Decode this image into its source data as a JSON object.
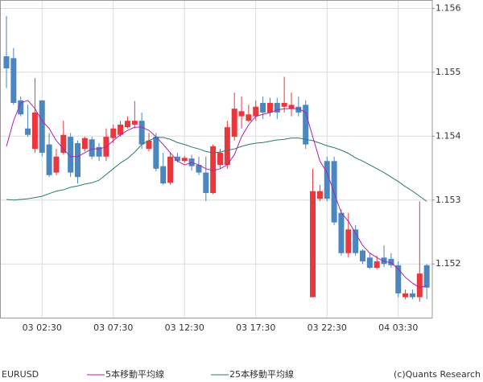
{
  "chart_data": {
    "type": "candlestick",
    "symbol": "EURUSD",
    "credit": "(c)Quants Research",
    "categories": [
      null,
      null,
      null,
      null,
      null,
      "03 02:30",
      null,
      null,
      null,
      null,
      null,
      null,
      null,
      null,
      null,
      "03 07:30",
      null,
      null,
      null,
      null,
      null,
      null,
      null,
      null,
      null,
      "03 12:30",
      null,
      null,
      null,
      null,
      null,
      null,
      null,
      null,
      null,
      "03 17:30",
      null,
      null,
      null,
      null,
      null,
      null,
      null,
      null,
      null,
      "03 22:30",
      null,
      null,
      null,
      null,
      null,
      null,
      null,
      null,
      null,
      "04 03:30",
      null,
      null,
      null,
      null
    ],
    "up_color": "#e8383d",
    "down_color": "#4a86c0",
    "ohlc": {
      "open": [
        1.15525,
        1.15522,
        1.15456,
        1.15412,
        1.1538,
        1.15456,
        1.15387,
        1.15343,
        1.15374,
        1.15399,
        1.15389,
        1.1538,
        1.15395,
        1.15383,
        1.15368,
        1.15397,
        1.15402,
        1.15414,
        1.15418,
        1.15424,
        1.1538,
        1.15399,
        1.15353,
        1.15327,
        1.15368,
        1.15361,
        1.15365,
        1.15355,
        1.15343,
        1.15311,
        1.15355,
        1.15355,
        1.15399,
        1.15431,
        1.15424,
        1.15431,
        1.15452,
        1.15437,
        1.15452,
        1.15446,
        1.15443,
        1.15446,
        1.15449,
        1.15148,
        1.15302,
        1.15361,
        1.15361,
        1.1528,
        1.15217,
        1.15254,
        1.15221,
        1.1521,
        1.15194,
        1.1521,
        1.15208,
        1.15198,
        1.15148,
        1.15154,
        1.15148,
        1.15198
      ],
      "high": [
        1.15588,
        1.15538,
        1.15462,
        1.15449,
        1.15491,
        1.15456,
        1.15405,
        1.1538,
        1.15424,
        1.15405,
        1.15393,
        1.15399,
        1.15399,
        1.15389,
        1.15412,
        1.15418,
        1.15424,
        1.15431,
        1.15455,
        1.15437,
        1.15405,
        1.15405,
        1.15374,
        1.15374,
        1.15374,
        1.15369,
        1.15371,
        1.15368,
        1.15368,
        1.15387,
        1.1538,
        1.15424,
        1.15468,
        1.15462,
        1.15449,
        1.15456,
        1.15462,
        1.1546,
        1.1546,
        1.15493,
        1.15468,
        1.15462,
        1.15456,
        1.15349,
        1.15324,
        1.15368,
        1.15368,
        1.15286,
        1.1528,
        1.15261,
        1.15223,
        1.15217,
        1.15213,
        1.15229,
        1.15217,
        1.15204,
        1.1516,
        1.1516,
        1.15298,
        1.152
      ],
      "low": [
        1.15475,
        1.15449,
        1.15431,
        1.15399,
        1.15374,
        1.15368,
        1.15336,
        1.15339,
        1.15371,
        1.15336,
        1.15326,
        1.15376,
        1.15364,
        1.15361,
        1.15361,
        1.15389,
        1.15399,
        1.15412,
        1.15412,
        1.1538,
        1.15376,
        1.15345,
        1.15324,
        1.15324,
        1.15359,
        1.15358,
        1.15346,
        1.15339,
        1.15298,
        1.15309,
        1.15349,
        1.15349,
        1.15393,
        1.15412,
        1.15422,
        1.15424,
        1.15427,
        1.15431,
        1.15427,
        1.15437,
        1.15431,
        1.15431,
        1.1538,
        1.15148,
        1.15298,
        1.15298,
        1.15261,
        1.15213,
        1.1521,
        1.15213,
        1.152,
        1.15192,
        1.15192,
        1.15195,
        1.15194,
        1.15148,
        1.15145,
        1.15145,
        1.15141,
        1.15145
      ],
      "close": [
        1.15506,
        1.15452,
        1.15434,
        1.15402,
        1.15437,
        1.15374,
        1.15339,
        1.15368,
        1.15402,
        1.15343,
        1.15336,
        1.15397,
        1.15368,
        1.15368,
        1.15399,
        1.15412,
        1.15418,
        1.15424,
        1.15424,
        1.15387,
        1.15393,
        1.15349,
        1.15326,
        1.15368,
        1.15361,
        1.15366,
        1.15353,
        1.15343,
        1.15311,
        1.15384,
        1.15374,
        1.15414,
        1.15443,
        1.15439,
        1.15434,
        1.15446,
        1.15437,
        1.15452,
        1.15437,
        1.15452,
        1.15449,
        1.15437,
        1.15387,
        1.15314,
        1.15314,
        1.15302,
        1.15265,
        1.15217,
        1.15254,
        1.15217,
        1.15204,
        1.15194,
        1.15204,
        1.152,
        1.15198,
        1.15154,
        1.15154,
        1.15148,
        1.15185,
        1.15163
      ]
    },
    "series": [
      {
        "name": "5本移動平均線",
        "color": "#b020b0",
        "values": [
          1.15384,
          1.15424,
          1.15452,
          1.15456,
          1.15443,
          1.15424,
          1.15412,
          1.15393,
          1.1538,
          1.15368,
          1.15368,
          1.15374,
          1.1538,
          1.1538,
          1.15383,
          1.15393,
          1.15402,
          1.15409,
          1.15414,
          1.15414,
          1.15409,
          1.15399,
          1.15387,
          1.15374,
          1.15361,
          1.15355,
          1.15359,
          1.15355,
          1.15349,
          1.15346,
          1.15349,
          1.15355,
          1.15371,
          1.15399,
          1.15418,
          1.15431,
          1.15434,
          1.15437,
          1.15441,
          1.15443,
          1.15443,
          1.15443,
          1.15437,
          1.15399,
          1.15361,
          1.15343,
          1.15311,
          1.1528,
          1.15267,
          1.15248,
          1.15229,
          1.15217,
          1.1521,
          1.15204,
          1.15202,
          1.15192,
          1.15179,
          1.1517,
          1.15163,
          1.15166
        ]
      },
      {
        "name": "25本移動平均線",
        "color": "#2a7a70",
        "values": [
          1.15301,
          1.153,
          1.15301,
          1.15302,
          1.15304,
          1.15306,
          1.1531,
          1.15314,
          1.15316,
          1.1532,
          1.15322,
          1.15325,
          1.15327,
          1.15331,
          1.1534,
          1.15349,
          1.15358,
          1.15365,
          1.15375,
          1.15387,
          1.15393,
          1.15398,
          1.15398,
          1.15395,
          1.1539,
          1.15387,
          1.15383,
          1.1538,
          1.15376,
          1.15374,
          1.15375,
          1.15378,
          1.1538,
          1.15384,
          1.15387,
          1.15389,
          1.1539,
          1.15392,
          1.15394,
          1.15395,
          1.15397,
          1.15397,
          1.15395,
          1.15393,
          1.15389,
          1.15385,
          1.15382,
          1.15378,
          1.15373,
          1.15366,
          1.15361,
          1.15355,
          1.15349,
          1.15343,
          1.15336,
          1.15329,
          1.15321,
          1.15314,
          1.15306,
          1.15298
        ]
      }
    ],
    "ylim": [
      1.15116,
      1.15613
    ],
    "yticks": [
      1.152,
      1.153,
      1.154,
      1.155,
      1.156
    ],
    "grid": true
  }
}
